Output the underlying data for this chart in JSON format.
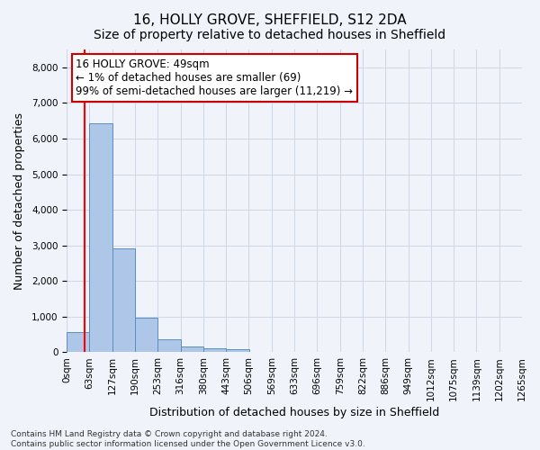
{
  "title": "16, HOLLY GROVE, SHEFFIELD, S12 2DA",
  "subtitle": "Size of property relative to detached houses in Sheffield",
  "xlabel": "Distribution of detached houses by size in Sheffield",
  "ylabel": "Number of detached properties",
  "footer_line1": "Contains HM Land Registry data © Crown copyright and database right 2024.",
  "footer_line2": "Contains public sector information licensed under the Open Government Licence v3.0.",
  "annotation_line1": "16 HOLLY GROVE: 49sqm",
  "annotation_line2": "← 1% of detached houses are smaller (69)",
  "annotation_line3": "99% of semi-detached houses are larger (11,219) →",
  "bar_values": [
    560,
    6420,
    2910,
    980,
    360,
    170,
    105,
    75,
    0,
    0,
    0,
    0,
    0,
    0,
    0,
    0,
    0,
    0,
    0,
    0
  ],
  "bar_labels": [
    "0sqm",
    "63sqm",
    "127sqm",
    "190sqm",
    "253sqm",
    "316sqm",
    "380sqm",
    "443sqm",
    "506sqm",
    "569sqm",
    "633sqm",
    "696sqm",
    "759sqm",
    "822sqm",
    "886sqm",
    "949sqm",
    "1012sqm",
    "1075sqm",
    "1139sqm",
    "1202sqm",
    "1265sqm"
  ],
  "bar_color": "#aec6e8",
  "bar_edge_color": "#5a8fc0",
  "ylim": [
    0,
    8500
  ],
  "yticks": [
    0,
    1000,
    2000,
    3000,
    4000,
    5000,
    6000,
    7000,
    8000
  ],
  "grid_color": "#d0d8e8",
  "background_color": "#f0f4fa",
  "annotation_box_color": "#ffffff",
  "annotation_box_edge": "#cc0000",
  "title_fontsize": 11,
  "subtitle_fontsize": 10,
  "xlabel_fontsize": 9,
  "ylabel_fontsize": 9,
  "tick_fontsize": 7.5,
  "annotation_fontsize": 8.5,
  "footer_fontsize": 6.5
}
